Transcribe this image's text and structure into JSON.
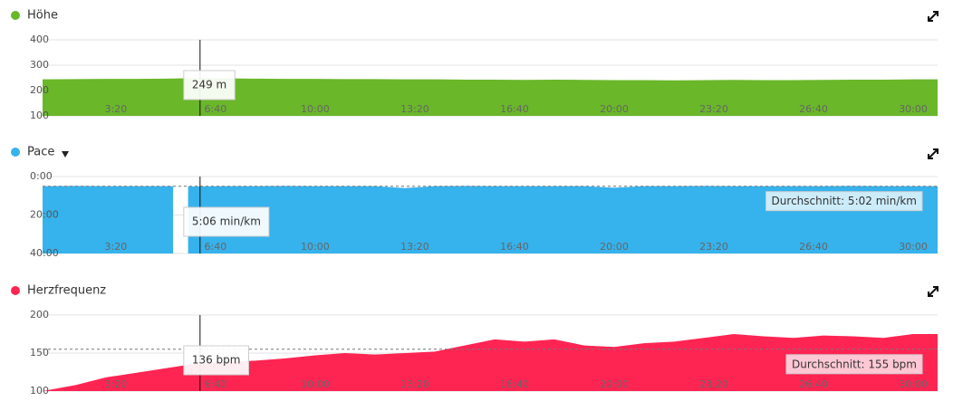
{
  "cursor_x": 369,
  "chart_data": [
    {
      "type": "area",
      "title": "Höhe",
      "color": "#6ab72a",
      "x": [
        53,
        120,
        180,
        240,
        300,
        360,
        420,
        480,
        540,
        600,
        660,
        720,
        780,
        840,
        900,
        960,
        1020,
        1080,
        1140,
        1200,
        1260,
        1320,
        1380,
        1440,
        1500,
        1560,
        1620,
        1680,
        1740,
        1800,
        1849
      ],
      "values": [
        244,
        245,
        246,
        246,
        247,
        249,
        248,
        247,
        246,
        246,
        245,
        245,
        244,
        244,
        243,
        243,
        242,
        243,
        242,
        241,
        241,
        240,
        241,
        242,
        241,
        241,
        242,
        243,
        243,
        244,
        244
      ],
      "xlim": [
        53,
        1849
      ],
      "xticks": [
        {
          "value": 200,
          "label": "3:20"
        },
        {
          "value": 400,
          "label": "6:40"
        },
        {
          "value": 600,
          "label": "10:00"
        },
        {
          "value": 800,
          "label": "13:20"
        },
        {
          "value": 1000,
          "label": "16:40"
        },
        {
          "value": 1200,
          "label": "20:00"
        },
        {
          "value": 1400,
          "label": "23:20"
        },
        {
          "value": 1600,
          "label": "26:40"
        },
        {
          "value": 1800,
          "label": "30:00"
        }
      ],
      "ylim": [
        100,
        400
      ],
      "yticks": [
        100,
        200,
        300,
        400
      ],
      "grid": true,
      "tooltip": {
        "value": 249,
        "label": "249 m"
      }
    },
    {
      "type": "area",
      "title": "Pace",
      "color": "#36b2ec",
      "inverted": true,
      "x": [
        53,
        120,
        180,
        240,
        300,
        315,
        330,
        345,
        360,
        420,
        480,
        540,
        600,
        660,
        720,
        780,
        840,
        900,
        960,
        1020,
        1080,
        1140,
        1200,
        1260,
        1320,
        1380,
        1440,
        1500,
        1560,
        1620,
        1680,
        1740,
        1800,
        1849
      ],
      "values": [
        5.0,
        4.9,
        5.0,
        5.0,
        5.0,
        5.0,
        null,
        5.1,
        5.1,
        5.0,
        5.0,
        4.9,
        5.0,
        5.0,
        5.0,
        6.0,
        5.0,
        4.9,
        5.0,
        5.0,
        5.0,
        5.0,
        5.8,
        5.0,
        5.0,
        4.9,
        5.0,
        5.0,
        5.0,
        5.0,
        4.9,
        5.0,
        5.0,
        5.0
      ],
      "xlim": [
        53,
        1849
      ],
      "xticks": [
        {
          "value": 200,
          "label": "3:20"
        },
        {
          "value": 400,
          "label": "6:40"
        },
        {
          "value": 600,
          "label": "10:00"
        },
        {
          "value": 800,
          "label": "13:20"
        },
        {
          "value": 1000,
          "label": "16:40"
        },
        {
          "value": 1200,
          "label": "20:00"
        },
        {
          "value": 1400,
          "label": "23:20"
        },
        {
          "value": 1600,
          "label": "26:40"
        },
        {
          "value": 1800,
          "label": "30:00"
        }
      ],
      "ylim": [
        0,
        40
      ],
      "yticks": [
        {
          "value": 0,
          "label": "0:00"
        },
        {
          "value": 20,
          "label": "20:00"
        },
        {
          "value": 40,
          "label": "40:00"
        }
      ],
      "grid": true,
      "tooltip": {
        "value": 5.1,
        "label": "5:06 min/km"
      },
      "average": {
        "value": 5.0333,
        "label": "Durchschnitt: 5:02 min/km"
      }
    },
    {
      "type": "area",
      "title": "Herzfrequenz",
      "color": "#ff2553",
      "x": [
        53,
        120,
        180,
        240,
        300,
        360,
        420,
        480,
        540,
        600,
        660,
        720,
        780,
        840,
        900,
        960,
        1020,
        1080,
        1140,
        1200,
        1260,
        1320,
        1380,
        1440,
        1500,
        1560,
        1620,
        1680,
        1740,
        1800,
        1849
      ],
      "values": [
        100,
        108,
        118,
        124,
        130,
        136,
        138,
        140,
        143,
        147,
        150,
        148,
        150,
        152,
        160,
        168,
        165,
        168,
        160,
        158,
        163,
        165,
        170,
        175,
        172,
        170,
        173,
        172,
        170,
        175,
        175
      ],
      "xlim": [
        53,
        1849
      ],
      "xticks": [
        {
          "value": 200,
          "label": "3:20"
        },
        {
          "value": 400,
          "label": "6:40"
        },
        {
          "value": 600,
          "label": "10:00"
        },
        {
          "value": 800,
          "label": "13:20"
        },
        {
          "value": 1000,
          "label": "16:40"
        },
        {
          "value": 1200,
          "label": "20:00"
        },
        {
          "value": 1400,
          "label": "23:20"
        },
        {
          "value": 1600,
          "label": "26:40"
        },
        {
          "value": 1800,
          "label": "30:00"
        }
      ],
      "ylim": [
        100,
        200
      ],
      "yticks": [
        100,
        150,
        200
      ],
      "grid": true,
      "tooltip": {
        "value": 136,
        "label": "136 bpm"
      },
      "average": {
        "value": 155,
        "label": "Durchschnitt: 155 bpm"
      }
    }
  ]
}
